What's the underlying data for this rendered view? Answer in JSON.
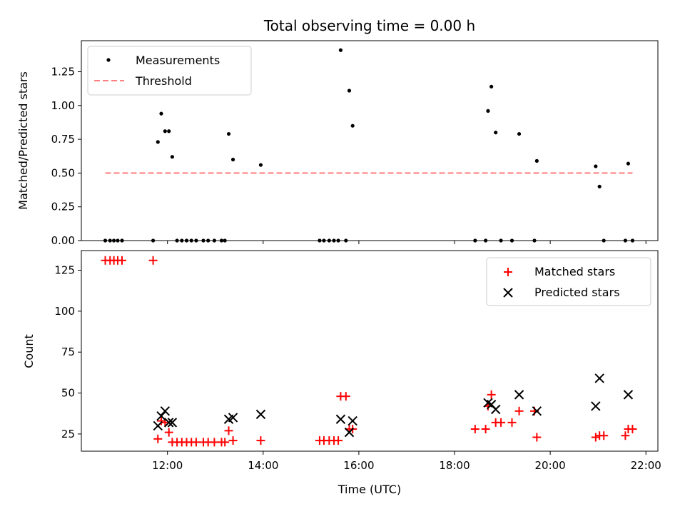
{
  "chart_data": [
    {
      "type": "scatter",
      "title": "Total observing time = 0.00 h",
      "xlabel": "",
      "ylabel": "Matched/Predicted stars",
      "ylim": [
        0,
        1.48
      ],
      "xlim": [
        10.2,
        22.25
      ],
      "yticks": [
        "0.00",
        "0.25",
        "0.50",
        "0.75",
        "1.00",
        "1.25"
      ],
      "ytick_values": [
        0,
        0.25,
        0.5,
        0.75,
        1.0,
        1.25
      ],
      "legend_position": "upper-left",
      "series": [
        {
          "name": "Measurements",
          "marker": "dot",
          "color": "#000000",
          "x": [
            10.7,
            10.8,
            10.88,
            10.96,
            11.05,
            11.7,
            11.8,
            11.87,
            11.95,
            12.03,
            12.1,
            12.2,
            12.3,
            12.4,
            12.5,
            12.6,
            12.75,
            12.85,
            12.98,
            13.13,
            13.2,
            13.28,
            13.37,
            13.95,
            15.18,
            15.27,
            15.38,
            15.48,
            15.57,
            15.62,
            15.73,
            15.8,
            15.87,
            18.43,
            18.65,
            18.7,
            18.77,
            18.86,
            18.97,
            19.2,
            19.35,
            19.67,
            19.72,
            20.95,
            21.03,
            21.12,
            21.57,
            21.63,
            21.72
          ],
          "y": [
            0,
            0,
            0,
            0,
            0,
            0,
            0.73,
            0.94,
            0.81,
            0.81,
            0.62,
            0,
            0,
            0,
            0,
            0,
            0,
            0,
            0,
            0,
            0,
            0.79,
            0.6,
            0.56,
            0,
            0,
            0,
            0,
            0,
            1.41,
            0,
            1.11,
            0.85,
            0,
            0,
            0.96,
            1.14,
            0.8,
            0,
            0,
            0.79,
            0,
            0.59,
            0.55,
            0.4,
            0,
            0,
            0.57,
            0
          ]
        },
        {
          "name": "Threshold",
          "style": "dashed",
          "color": "#ff7f7f",
          "x": [
            10.7,
            21.72
          ],
          "y": [
            0.5,
            0.5
          ]
        }
      ]
    },
    {
      "type": "scatter",
      "title": "",
      "xlabel": "Time (UTC)",
      "ylabel": "Count",
      "ylim": [
        14.5,
        137
      ],
      "xlim": [
        10.2,
        22.25
      ],
      "xticks": [
        "12:00",
        "14:00",
        "16:00",
        "18:00",
        "20:00",
        "22:00"
      ],
      "xtick_values": [
        12,
        14,
        16,
        18,
        20,
        22
      ],
      "yticks": [
        "25",
        "50",
        "75",
        "100",
        "125"
      ],
      "ytick_values": [
        25,
        50,
        75,
        100,
        125
      ],
      "legend_position": "upper-right",
      "series": [
        {
          "name": "Matched stars",
          "marker": "plus",
          "color": "#ff0000",
          "x": [
            10.7,
            10.8,
            10.88,
            10.96,
            11.05,
            11.7,
            11.8,
            11.87,
            11.95,
            12.03,
            12.1,
            12.2,
            12.3,
            12.4,
            12.5,
            12.6,
            12.75,
            12.85,
            12.98,
            13.13,
            13.2,
            13.28,
            13.37,
            13.95,
            15.18,
            15.27,
            15.38,
            15.48,
            15.57,
            15.62,
            15.73,
            15.8,
            15.87,
            18.43,
            18.65,
            18.7,
            18.77,
            18.86,
            18.97,
            19.2,
            19.35,
            19.67,
            19.72,
            20.95,
            21.03,
            21.12,
            21.57,
            21.63,
            21.72
          ],
          "y": [
            131,
            131,
            131,
            131,
            131,
            131,
            22,
            33,
            32,
            26,
            20,
            20,
            20,
            20,
            20,
            20,
            20,
            20,
            20,
            20,
            20,
            27,
            21,
            21,
            21,
            21,
            21,
            21,
            21,
            48,
            48,
            28,
            28,
            28,
            28,
            42,
            49,
            32,
            32,
            32,
            39,
            39,
            23,
            23,
            24,
            24,
            24,
            28,
            28
          ]
        },
        {
          "name": "Predicted stars",
          "marker": "x",
          "color": "#000000",
          "x": [
            11.8,
            11.87,
            11.95,
            12.03,
            12.1,
            13.28,
            13.37,
            13.95,
            15.62,
            15.8,
            15.87,
            18.7,
            18.77,
            18.86,
            19.35,
            19.72,
            20.95,
            21.03,
            21.63
          ],
          "y": [
            30,
            36,
            39,
            32,
            32,
            34,
            35,
            37,
            34,
            26,
            33,
            44,
            43,
            40,
            49,
            39,
            42,
            59,
            49
          ]
        }
      ]
    }
  ]
}
